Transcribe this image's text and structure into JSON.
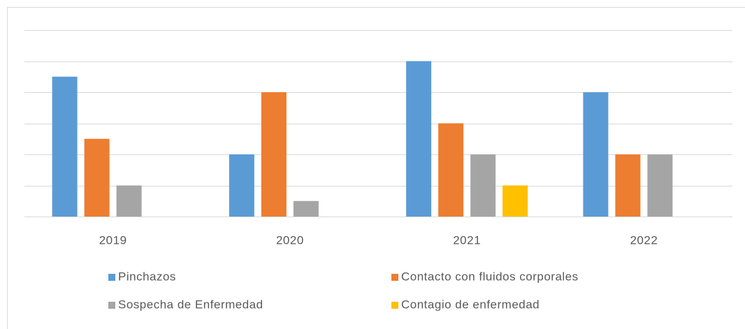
{
  "chart_data": {
    "type": "bar",
    "categories": [
      "2019",
      "2020",
      "2021",
      "2022"
    ],
    "series": [
      {
        "name": "Pinchazos",
        "color": "#5b9bd5",
        "values": [
          4.5,
          2,
          5,
          4
        ]
      },
      {
        "name": "Contacto con fluidos corporales",
        "color": "#ed7d31",
        "values": [
          2.5,
          4,
          3,
          2
        ]
      },
      {
        "name": "Sospecha de Enfermedad",
        "color": "#a5a5a5",
        "values": [
          1,
          0.5,
          2,
          2
        ]
      },
      {
        "name": "Contagio de enfermedad",
        "color": "#ffc000",
        "values": [
          0,
          0,
          1,
          0
        ]
      }
    ],
    "ylim": [
      0,
      6
    ],
    "yticks": [
      0,
      1,
      2,
      3,
      4,
      5,
      6
    ],
    "grid": true,
    "legend": "bottom"
  }
}
